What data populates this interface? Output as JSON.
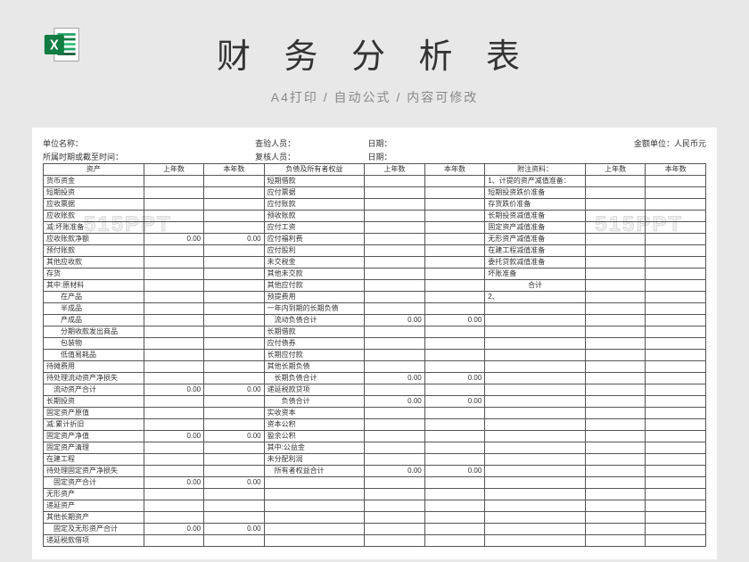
{
  "title": "财 务 分 析 表",
  "subtitle": "A4打印  /  自动公式  /  内容可修改",
  "watermark": "515PPT",
  "header1": {
    "unit_label": "单位名称：",
    "inspector_label": "查验人员：",
    "date_label": "日期：",
    "currency_label": "金额单位：人民币元"
  },
  "header2": {
    "period_label": "所属时期或截至时间：",
    "reviewer_label": "复核人员：",
    "date_label": "日期："
  },
  "columns": {
    "asset": "资产",
    "prev": "上年数",
    "curr": "本年数",
    "liab": "负债及所有者权益",
    "notes": "附注资料："
  },
  "rows": [
    [
      "货币资金",
      "",
      "",
      "短期借款",
      "",
      "",
      "1、计提的资产减值准备：",
      "",
      ""
    ],
    [
      "短期投资",
      "",
      "",
      "应付票据",
      "",
      "",
      "短期投资跌价准备",
      "",
      ""
    ],
    [
      "应收票据",
      "",
      "",
      "应付账款",
      "",
      "",
      "存货跌价准备",
      "",
      ""
    ],
    [
      "应收账款",
      "",
      "",
      "预收账款",
      "",
      "",
      "长期投资减值准备",
      "",
      ""
    ],
    [
      "减:坏账准备",
      "",
      "",
      "应付工资",
      "",
      "",
      "固定资产减值准备",
      "",
      ""
    ],
    [
      "应收账款净额",
      "0.00",
      "0.00",
      "应付福利费",
      "",
      "",
      "无形资产减值准备",
      "",
      ""
    ],
    [
      "预付账款",
      "",
      "",
      "应付股利",
      "",
      "",
      "在建工程减值准备",
      "",
      ""
    ],
    [
      "其他应收款",
      "",
      "",
      "未交税金",
      "",
      "",
      "委托贷款减值准备",
      "",
      ""
    ],
    [
      "存货",
      "",
      "",
      "其他未交款",
      "",
      "",
      "坏账准备",
      "",
      ""
    ],
    [
      "其中:原材料",
      "",
      "",
      "其他应付款",
      "",
      "",
      "合计",
      "",
      ""
    ],
    [
      "　　在产品",
      "",
      "",
      "预提费用",
      "",
      "",
      "2、",
      "",
      ""
    ],
    [
      "　　半成品",
      "",
      "",
      "一年内到期的长期负债",
      "",
      "",
      "",
      "",
      ""
    ],
    [
      "　　产成品",
      "",
      "",
      "　流动负债合计",
      "0.00",
      "0.00",
      "",
      "",
      ""
    ],
    [
      "　　分期收款发出商品",
      "",
      "",
      "长期借款",
      "",
      "",
      "",
      "",
      ""
    ],
    [
      "　　包装物",
      "",
      "",
      "应付债券",
      "",
      "",
      "",
      "",
      ""
    ],
    [
      "　　低值易耗品",
      "",
      "",
      "长期应付款",
      "",
      "",
      "",
      "",
      ""
    ],
    [
      "待摊费用",
      "",
      "",
      "其他长期负债",
      "",
      "",
      "",
      "",
      ""
    ],
    [
      "待处理流动资产净损失",
      "",
      "",
      "　长期负债合计",
      "0.00",
      "0.00",
      "",
      "",
      ""
    ],
    [
      "　流动资产合计",
      "0.00",
      "0.00",
      "递延税款贷项",
      "",
      "",
      "",
      "",
      ""
    ],
    [
      "长期投资",
      "",
      "",
      "　　负债合计",
      "0.00",
      "0.00",
      "",
      "",
      ""
    ],
    [
      "固定资产原值",
      "",
      "",
      "实收资本",
      "",
      "",
      "",
      "",
      ""
    ],
    [
      "减:累计折旧",
      "",
      "",
      "资本公积",
      "",
      "",
      "",
      "",
      ""
    ],
    [
      "固定资产净值",
      "0.00",
      "0.00",
      "盈余公积",
      "",
      "",
      "",
      "",
      ""
    ],
    [
      "固定资产清理",
      "",
      "",
      "其中:公益金",
      "",
      "",
      "",
      "",
      ""
    ],
    [
      "在建工程",
      "",
      "",
      "未分配利润",
      "",
      "",
      "",
      "",
      ""
    ],
    [
      "待处理固定资产净损失",
      "",
      "",
      "　所有者权益合计",
      "0.00",
      "0.00",
      "",
      "",
      ""
    ],
    [
      "　固定资产合计",
      "0.00",
      "0.00",
      "",
      "",
      "",
      "",
      "",
      ""
    ],
    [
      "无形资产",
      "",
      "",
      "",
      "",
      "",
      "",
      "",
      ""
    ],
    [
      "递延资产",
      "",
      "",
      "",
      "",
      "",
      "",
      "",
      ""
    ],
    [
      "其他长期资产",
      "",
      "",
      "",
      "",
      "",
      "",
      "",
      ""
    ],
    [
      "　固定及无形资产合计",
      "0.00",
      "0.00",
      "",
      "",
      "",
      "",
      "",
      ""
    ],
    [
      "递延税款借项",
      "",
      "",
      "",
      "",
      "",
      "",
      "",
      ""
    ]
  ]
}
